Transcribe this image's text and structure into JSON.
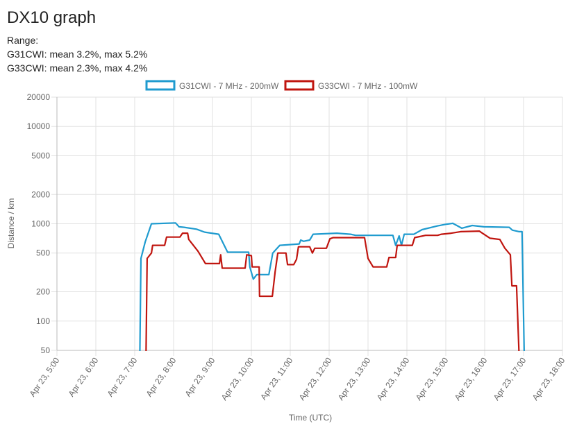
{
  "chart_data": {
    "type": "line",
    "title": "DX10 graph",
    "annotations": [
      "Range:",
      "G31CWI: mean 3.2%, max 5.2%",
      "G33CWI: mean 2.3%, max 4.2%"
    ],
    "xlabel": "Time (UTC)",
    "ylabel": "Distance / km",
    "log_y": true,
    "grid": true,
    "legend": "top",
    "xlim": [
      5,
      18
    ],
    "xticks": [
      {
        "value": 5,
        "label": "Apr 23, 5:00"
      },
      {
        "value": 6,
        "label": "Apr 23, 6:00"
      },
      {
        "value": 7,
        "label": "Apr 23, 7:00"
      },
      {
        "value": 8,
        "label": "Apr 23, 8:00"
      },
      {
        "value": 9,
        "label": "Apr 23, 9:00"
      },
      {
        "value": 10,
        "label": "Apr 23, 10:00"
      },
      {
        "value": 11,
        "label": "Apr 23, 11:00"
      },
      {
        "value": 12,
        "label": "Apr 23, 12:00"
      },
      {
        "value": 13,
        "label": "Apr 23, 13:00"
      },
      {
        "value": 14,
        "label": "Apr 23, 14:00"
      },
      {
        "value": 15,
        "label": "Apr 23, 15:00"
      },
      {
        "value": 16,
        "label": "Apr 23, 16:00"
      },
      {
        "value": 17,
        "label": "Apr 23, 17:00"
      },
      {
        "value": 18,
        "label": "Apr 23, 18:00"
      }
    ],
    "ylim": [
      50,
      20000
    ],
    "yticks": [
      50,
      100,
      200,
      500,
      1000,
      2000,
      5000,
      10000,
      20000
    ],
    "series": [
      {
        "name": "G31CWI - 7 MHz - 200mW",
        "color": "#1f9bcf",
        "x": [
          7.13,
          7.16,
          7.27,
          7.43,
          8.05,
          8.14,
          8.27,
          8.59,
          8.8,
          9.16,
          9.39,
          9.93,
          9.96,
          10.05,
          10.14,
          10.45,
          10.55,
          10.73,
          11.23,
          11.27,
          11.34,
          11.5,
          11.59,
          12.2,
          12.55,
          12.68,
          13.64,
          13.71,
          13.8,
          13.86,
          13.93,
          14.18,
          14.39,
          14.79,
          15.02,
          15.18,
          15.41,
          15.68,
          15.98,
          16.63,
          16.71,
          16.89,
          16.96,
          17.02
        ],
        "values": [
          40,
          440,
          650,
          1000,
          1020,
          930,
          920,
          880,
          820,
          780,
          510,
          510,
          360,
          270,
          300,
          300,
          500,
          600,
          620,
          680,
          660,
          680,
          780,
          800,
          780,
          760,
          760,
          600,
          750,
          600,
          780,
          780,
          870,
          950,
          990,
          1010,
          900,
          960,
          930,
          920,
          860,
          830,
          830,
          40
        ]
      },
      {
        "name": "G33CWI - 7 MHz - 100mW",
        "color": "#c0150f",
        "x": [
          7.29,
          7.32,
          7.43,
          7.46,
          7.77,
          7.82,
          8.16,
          8.23,
          8.36,
          8.39,
          8.63,
          8.82,
          9.18,
          9.21,
          9.25,
          9.84,
          9.88,
          10.0,
          10.02,
          10.2,
          10.21,
          10.54,
          10.61,
          10.68,
          10.89,
          10.93,
          11.09,
          11.16,
          11.21,
          11.5,
          11.57,
          11.63,
          11.93,
          12.02,
          12.1,
          12.91,
          13.0,
          13.13,
          13.48,
          13.54,
          13.71,
          13.75,
          14.14,
          14.2,
          14.48,
          14.79,
          14.89,
          15.14,
          15.38,
          15.86,
          15.98,
          16.14,
          16.39,
          16.52,
          16.66,
          16.7,
          16.82,
          16.89
        ],
        "values": [
          40,
          440,
          500,
          600,
          600,
          730,
          730,
          800,
          800,
          690,
          520,
          390,
          390,
          480,
          350,
          350,
          480,
          470,
          360,
          360,
          180,
          180,
          320,
          500,
          500,
          380,
          380,
          430,
          580,
          580,
          500,
          560,
          560,
          700,
          720,
          720,
          440,
          360,
          360,
          450,
          450,
          600,
          600,
          720,
          760,
          760,
          780,
          800,
          830,
          840,
          780,
          710,
          690,
          560,
          480,
          230,
          230,
          40
        ]
      }
    ]
  }
}
